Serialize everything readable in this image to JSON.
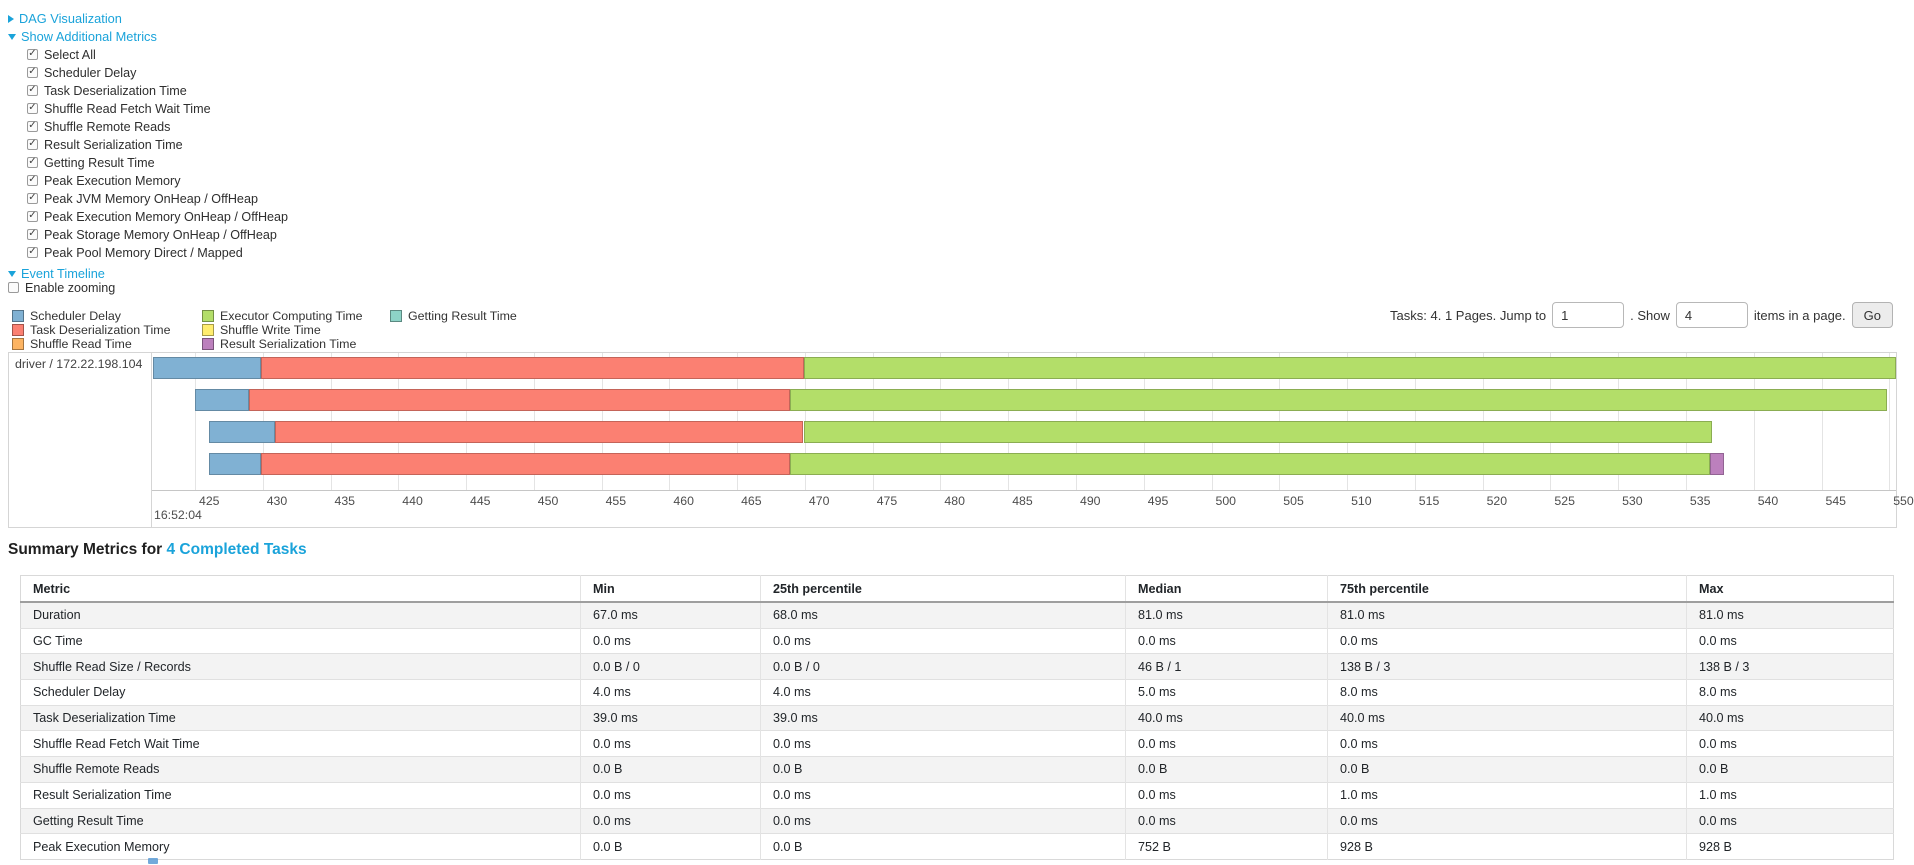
{
  "colors": {
    "accent": "#1AA3DA",
    "scheduler_delay": "#80B1D3",
    "task_deserialization": "#FB8072",
    "shuffle_read": "#FDB462",
    "executor_computing": "#B3DE69",
    "shuffle_write": "#FFED6F",
    "result_serialization": "#BC80BD",
    "getting_result": "#8DD3C7"
  },
  "toggles": {
    "dag": "DAG Visualization",
    "additional_metrics": "Show Additional Metrics",
    "event_timeline": "Event Timeline",
    "enable_zooming": "Enable zooming"
  },
  "metric_checkboxes": [
    {
      "label": "Select All",
      "checked": true
    },
    {
      "label": "Scheduler Delay",
      "checked": true
    },
    {
      "label": "Task Deserialization Time",
      "checked": true
    },
    {
      "label": "Shuffle Read Fetch Wait Time",
      "checked": true
    },
    {
      "label": "Shuffle Remote Reads",
      "checked": true
    },
    {
      "label": "Result Serialization Time",
      "checked": true
    },
    {
      "label": "Getting Result Time",
      "checked": true
    },
    {
      "label": "Peak Execution Memory",
      "checked": true
    },
    {
      "label": "Peak JVM Memory OnHeap / OffHeap",
      "checked": true
    },
    {
      "label": "Peak Execution Memory OnHeap / OffHeap",
      "checked": true
    },
    {
      "label": "Peak Storage Memory OnHeap / OffHeap",
      "checked": true
    },
    {
      "label": "Peak Pool Memory Direct / Mapped",
      "checked": true
    }
  ],
  "legend_columns": [
    [
      {
        "label": "Scheduler Delay",
        "color_key": "scheduler_delay"
      },
      {
        "label": "Task Deserialization Time",
        "color_key": "task_deserialization"
      },
      {
        "label": "Shuffle Read Time",
        "color_key": "shuffle_read"
      }
    ],
    [
      {
        "label": "Executor Computing Time",
        "color_key": "executor_computing"
      },
      {
        "label": "Shuffle Write Time",
        "color_key": "shuffle_write"
      },
      {
        "label": "Result Serialization Time",
        "color_key": "result_serialization"
      }
    ],
    [
      {
        "label": "Getting Result Time",
        "color_key": "getting_result"
      }
    ]
  ],
  "pagination": {
    "prefix": "Tasks: 4. 1 Pages. Jump to",
    "jump_value": "1",
    "mid": ". Show",
    "show_value": "4",
    "suffix": "items in a page.",
    "go_label": "Go"
  },
  "chart_data": {
    "type": "timeline-gantt",
    "group_label": "driver / 172.22.198.104",
    "axis": {
      "left_edge_value_ms": 421.83,
      "right_edge_value_ms": 550.5,
      "tick_start": 425,
      "tick_end": 550,
      "tick_step": 5,
      "major_label": "16:52:04",
      "grid": true
    },
    "tasks": [
      {
        "segments": [
          {
            "type": "scheduler_delay",
            "start": 421.9,
            "end": 429.9
          },
          {
            "type": "task_deserialization",
            "start": 429.9,
            "end": 469.9
          },
          {
            "type": "executor_computing",
            "start": 469.9,
            "end": 551.0
          }
        ]
      },
      {
        "segments": [
          {
            "type": "scheduler_delay",
            "start": 425.0,
            "end": 429.0
          },
          {
            "type": "task_deserialization",
            "start": 429.0,
            "end": 468.9
          },
          {
            "type": "executor_computing",
            "start": 468.9,
            "end": 549.8
          }
        ]
      },
      {
        "segments": [
          {
            "type": "scheduler_delay",
            "start": 426.0,
            "end": 430.9
          },
          {
            "type": "task_deserialization",
            "start": 430.9,
            "end": 469.9
          },
          {
            "type": "executor_computing",
            "start": 469.9,
            "end": 536.9
          }
        ]
      },
      {
        "segments": [
          {
            "type": "scheduler_delay",
            "start": 426.0,
            "end": 429.9
          },
          {
            "type": "task_deserialization",
            "start": 429.9,
            "end": 468.9
          },
          {
            "type": "executor_computing",
            "start": 468.9,
            "end": 536.8
          },
          {
            "type": "result_serialization",
            "start": 536.8,
            "end": 537.8
          }
        ]
      }
    ]
  },
  "summary": {
    "title_prefix": "Summary Metrics for ",
    "title_link": "4 Completed Tasks",
    "headers": [
      "Metric",
      "Min",
      "25th percentile",
      "Median",
      "75th percentile",
      "Max"
    ],
    "rows": [
      {
        "metric": "Duration",
        "values": [
          "67.0 ms",
          "68.0 ms",
          "81.0 ms",
          "81.0 ms",
          "81.0 ms"
        ]
      },
      {
        "metric": "GC Time",
        "values": [
          "0.0 ms",
          "0.0 ms",
          "0.0 ms",
          "0.0 ms",
          "0.0 ms"
        ]
      },
      {
        "metric": "Shuffle Read Size / Records",
        "values": [
          "0.0 B / 0",
          "0.0 B / 0",
          "46 B / 1",
          "138 B / 3",
          "138 B / 3"
        ]
      },
      {
        "metric": "Scheduler Delay",
        "values": [
          "4.0 ms",
          "4.0 ms",
          "5.0 ms",
          "8.0 ms",
          "8.0 ms"
        ]
      },
      {
        "metric": "Task Deserialization Time",
        "values": [
          "39.0 ms",
          "39.0 ms",
          "40.0 ms",
          "40.0 ms",
          "40.0 ms"
        ]
      },
      {
        "metric": "Shuffle Read Fetch Wait Time",
        "values": [
          "0.0 ms",
          "0.0 ms",
          "0.0 ms",
          "0.0 ms",
          "0.0 ms"
        ]
      },
      {
        "metric": "Shuffle Remote Reads",
        "values": [
          "0.0 B",
          "0.0 B",
          "0.0 B",
          "0.0 B",
          "0.0 B"
        ]
      },
      {
        "metric": "Result Serialization Time",
        "values": [
          "0.0 ms",
          "0.0 ms",
          "0.0 ms",
          "1.0 ms",
          "1.0 ms"
        ]
      },
      {
        "metric": "Getting Result Time",
        "values": [
          "0.0 ms",
          "0.0 ms",
          "0.0 ms",
          "0.0 ms",
          "0.0 ms"
        ]
      },
      {
        "metric": "Peak Execution Memory",
        "values": [
          "0.0 B",
          "0.0 B",
          "752 B",
          "928 B",
          "928 B"
        ]
      }
    ]
  }
}
